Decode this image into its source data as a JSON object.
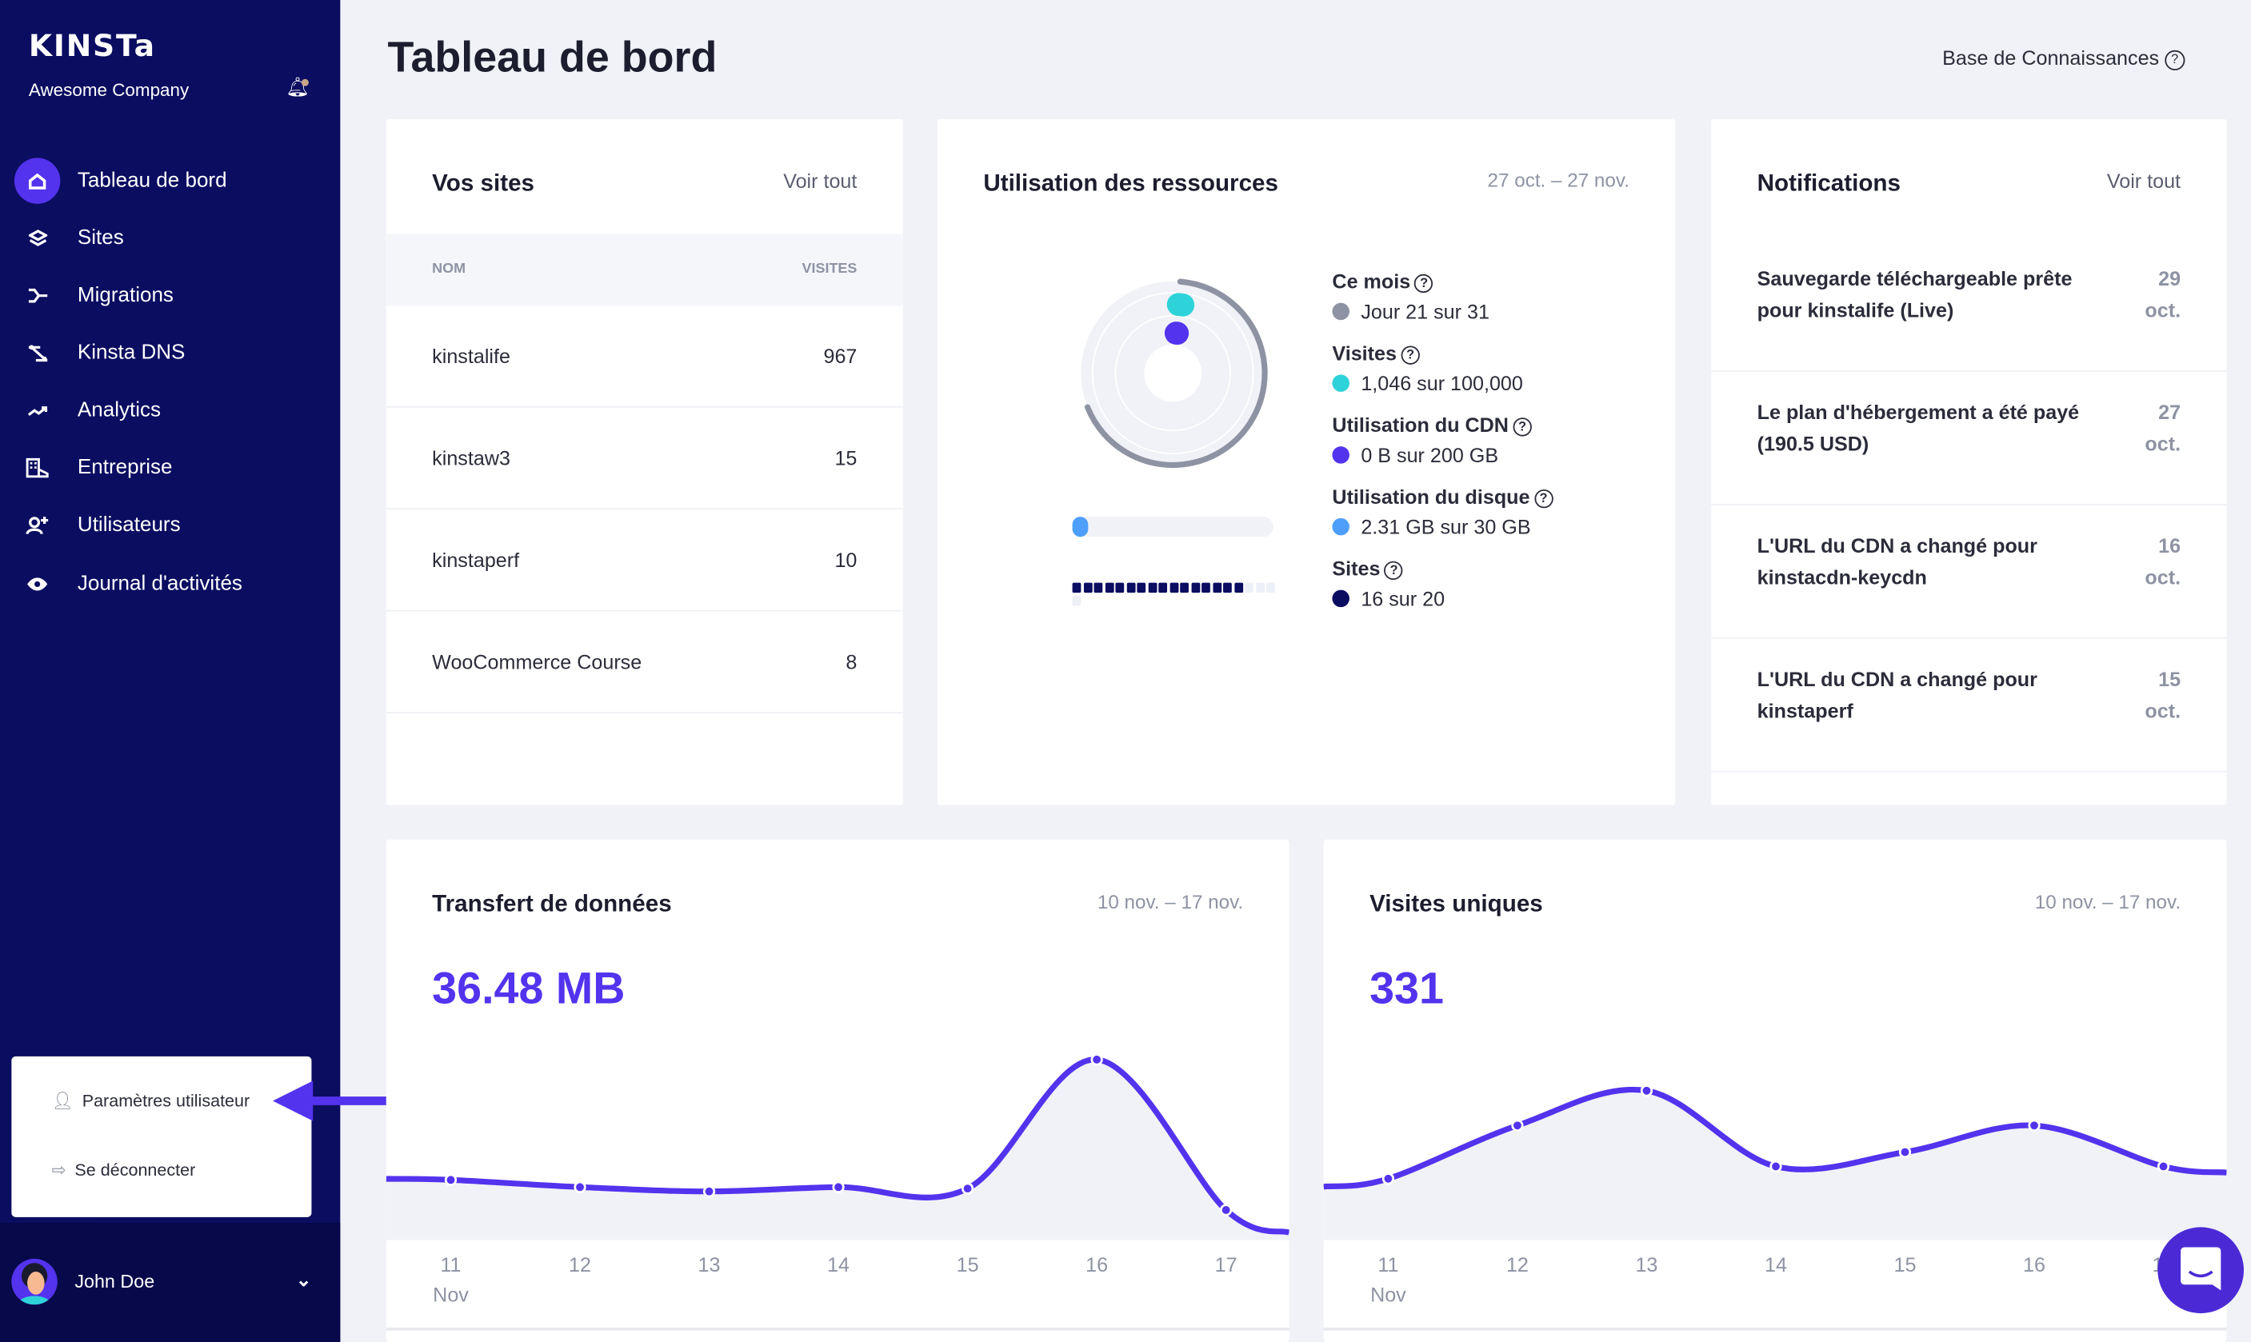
{
  "sidebar": {
    "logo": "KINSTa",
    "company": "Awesome Company",
    "items": [
      {
        "label": "Tableau de bord",
        "icon": "home-icon",
        "active": true
      },
      {
        "label": "Sites",
        "icon": "layers-icon"
      },
      {
        "label": "Migrations",
        "icon": "migration-icon"
      },
      {
        "label": "Kinsta DNS",
        "icon": "dns-icon"
      },
      {
        "label": "Analytics",
        "icon": "trend-icon"
      },
      {
        "label": "Entreprise",
        "icon": "building-icon"
      },
      {
        "label": "Utilisateurs",
        "icon": "user-plus-icon"
      },
      {
        "label": "Journal d'activités",
        "icon": "eye-icon"
      }
    ],
    "menu": {
      "settings": "Paramètres utilisateur",
      "logout": "Se déconnecter"
    },
    "user": "John Doe"
  },
  "header": {
    "title": "Tableau de bord",
    "kb": "Base de Connaissances"
  },
  "sites": {
    "title": "Vos sites",
    "link": "Voir tout",
    "col_name": "NOM",
    "col_visits": "VISITES",
    "rows": [
      {
        "name": "kinstalife",
        "visits": "967"
      },
      {
        "name": "kinstaw3",
        "visits": "15"
      },
      {
        "name": "kinstaperf",
        "visits": "10"
      },
      {
        "name": "WooCommerce Course",
        "visits": "8"
      }
    ]
  },
  "resources": {
    "title": "Utilisation des ressources",
    "range": "27 oct. – 27 nov.",
    "month": {
      "label": "Ce mois",
      "value": "Jour 21 sur 31",
      "fraction": 0.677,
      "color": "#8e93a3"
    },
    "visits": {
      "label": "Visites",
      "value": "1,046 sur 100,000",
      "fraction": 0.0105,
      "color": "#2ed3d9"
    },
    "cdn": {
      "label": "Utilisation du CDN",
      "value": "0 B sur 200 GB",
      "fraction": 0,
      "color": "#5333ed"
    },
    "disk": {
      "label": "Utilisation du disque",
      "value": "2.31 GB sur 30 GB",
      "fraction": 0.077,
      "color": "#4e9ffc"
    },
    "sitesUsage": {
      "label": "Sites",
      "value": "16 sur 20",
      "used": 16,
      "total": 20,
      "color": "#0b0d61"
    }
  },
  "notifications": {
    "title": "Notifications",
    "link": "Voir tout",
    "items": [
      {
        "text": "Sauvegarde téléchargeable prête pour kinstalife (Live)",
        "day": "29",
        "month": "oct."
      },
      {
        "text": "Le plan d'hébergement a été payé (190.5 USD)",
        "day": "27",
        "month": "oct."
      },
      {
        "text": "L'URL du CDN a changé pour kinstacdn-keycdn",
        "day": "16",
        "month": "oct."
      },
      {
        "text": "L'URL du CDN a changé pour kinstaperf",
        "day": "15",
        "month": "oct."
      }
    ]
  },
  "chart_data": [
    {
      "type": "area",
      "title": "Transfert de données",
      "range": "10 nov. – 17 nov.",
      "total": "36.48 MB",
      "categories": [
        "11",
        "12",
        "13",
        "14",
        "15",
        "16",
        "17"
      ],
      "month_label": "Nov",
      "values": [
        4.6,
        4.05,
        3.72,
        4.05,
        3.94,
        13.8,
        2.3
      ],
      "unit": "MB",
      "ylim": [
        0,
        15.8
      ],
      "color": "#5333ed",
      "grid": false
    },
    {
      "type": "area",
      "title": "Visites uniques",
      "range": "10 nov. – 17 nov.",
      "total": "331",
      "categories": [
        "11",
        "12",
        "13",
        "14",
        "15",
        "16",
        "17"
      ],
      "month_label": "Nov",
      "values": [
        30,
        56,
        73,
        36,
        43,
        56,
        36
      ],
      "ylim": [
        0,
        101
      ],
      "color": "#5333ed",
      "grid": false
    }
  ]
}
